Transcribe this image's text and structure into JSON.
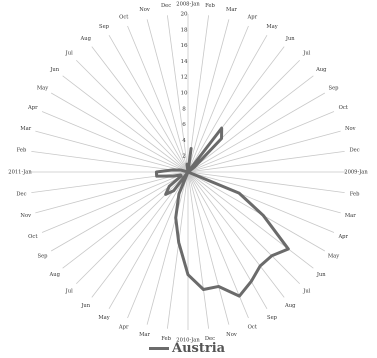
{
  "chart_data": {
    "type": "radar",
    "title": "",
    "radial_axis": {
      "min": 0,
      "max": 20,
      "tick_labels": [
        "2",
        "4",
        "6",
        "8",
        "10",
        "12",
        "14",
        "16",
        "18",
        "20"
      ]
    },
    "categories": [
      "2008-Jan",
      "Feb",
      "Mar",
      "Apr",
      "May",
      "Jun",
      "Jul",
      "Aug",
      "Sep",
      "Oct",
      "Nov",
      "Dec",
      "2009-Jan",
      "Feb",
      "Mar",
      "Apr",
      "May",
      "Jun",
      "Jul",
      "Aug",
      "Sep",
      "Oct",
      "Nov",
      "Dec",
      "2010-Jan",
      "Feb",
      "Mar",
      "Apr",
      "May",
      "Jun",
      "Jul",
      "Aug",
      "Sep",
      "Oct",
      "Nov",
      "Dec",
      "2011-Jan",
      "Feb",
      "Mar",
      "Apr",
      "May",
      "Jun",
      "Jul",
      "Aug",
      "Sep",
      "Oct",
      "Nov",
      "Dec"
    ],
    "series": [
      {
        "name": "Austria",
        "color": "#6b6b6b",
        "values": [
          0,
          3,
          0,
          0,
          0,
          7,
          6,
          1,
          0,
          0,
          0,
          0,
          0,
          0,
          0,
          7,
          11,
          16,
          15,
          15,
          16,
          17,
          15,
          15,
          13,
          9,
          6,
          3,
          0,
          3,
          4,
          3,
          1,
          1,
          2,
          4,
          4,
          2,
          1,
          0,
          0,
          0,
          0,
          0,
          0,
          0,
          0,
          1
        ]
      }
    ],
    "grid": false,
    "legend_position": "bottom"
  }
}
